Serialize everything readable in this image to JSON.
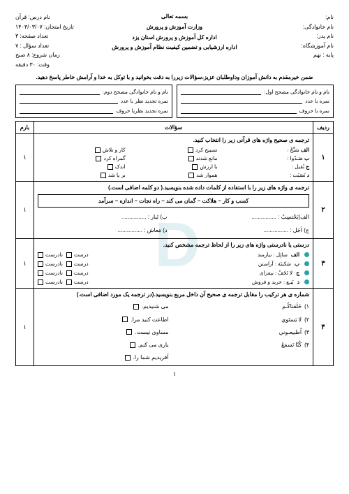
{
  "header": {
    "bismillah": "بسمه تعالی",
    "ministry": "وزارت آموزش و پرورش",
    "office": "اداره کل آموزش و پرورش استان یزد",
    "dept": "اداره ارزشیابی و تضمین کیفیت نظام آموزش و پرورش",
    "right_labels": {
      "l1": "نام:",
      "l2": "نام خانوادگی:",
      "l3": "نام پدر:",
      "l4": "نام آموزشگاه:",
      "l5": "پایه : نهم"
    },
    "left_labels": {
      "l1": "نام درس: قرآن",
      "l2": "تاریخ امتحان: ۱۴۰۳/۰۳/۰۷",
      "l3": "تعداد صفحه: ۳",
      "l4": "تعداد سؤال : ۷",
      "l5": "زمان شروع: ۸ صبح",
      "l6": "وقت: ۳۰ دقیقه"
    }
  },
  "intro": "ضمن خیرمقدم به دانش آموزان وداوطلبان عزیز،سؤالات زیررا به دقت بخوانید و با توکل به خدا و آرامش خاطر پاسخ دهید.",
  "graders": {
    "g1": {
      "title": "نام و نام خانوادگی مصحح اول:",
      "num": "نمره با عدد",
      "word": "نمره با حروف"
    },
    "g2": {
      "title": "نام و نام خانوادگی مصحح دوم:",
      "num": "نمره تجدید نظر با عدد",
      "word": "نمره تجدید نظربا حروف"
    }
  },
  "table": {
    "h_row": "ردیف",
    "h_q": "سؤالات",
    "h_score": "بارم"
  },
  "q1": {
    "num": "۱",
    "score": "۱",
    "title": "ترجمه ی صحیح واژه های قرآنی زیر را انتخاب کنید.",
    "rows": [
      {
        "p": "الف",
        "w": "سَبِّحْ :",
        "o1": "تسبیح کرد",
        "o2": "کار و تلاش"
      },
      {
        "p": "ب",
        "w": "صَـدّوا :",
        "o1": "مانع شدند",
        "o2": "گمراه کرد"
      },
      {
        "p": "ج",
        "w": "ثَقيل :",
        "o1": "با ارزش",
        "o2": "اندک"
      },
      {
        "p": "د",
        "w": "نَصَبَت :",
        "o1": "هموار شد",
        "o2": "بر پا شد"
      }
    ]
  },
  "q2": {
    "num": "۲",
    "score": "۱",
    "title": "ترجمه ی واژه های زیر را با استفاده از کلمات داده شده بنویسید.( دو کلمه اضافی است.)",
    "box": "کسب و کار – هلاکت – گمان می کند – راه نجات – اندازه – سرآمد",
    "items": {
      "a": "الف)يَحْتسِبُ :",
      "b": "ب) تَبار :",
      "c": "ج) اَجَل :",
      "d": "د) مَعاش :"
    }
  },
  "q3": {
    "num": "۳",
    "score": "۱",
    "title": "درستی یا نادرستی واژه های زیر را  از لحاظ ترجمه مشخص کنید.",
    "items": [
      {
        "p": "الف",
        "t": "سائِل : نیازمند"
      },
      {
        "p": "ب",
        "t": "سَکينَة : آراستن"
      },
      {
        "p": "ج",
        "t": "لا تَخَفْ : بیفزای"
      },
      {
        "p": "د",
        "t": "بَيـع : خرید و فروش"
      }
    ],
    "true_l": "درست",
    "false_l": "نادرست"
  },
  "q4": {
    "num": "۴",
    "score": "۱",
    "title": "شماره ی  هر ترکیب را مقابل ترجمه ی صحیح آن داخل مربع بنویسید.(در ترجمه یک مورد اضافی است.)",
    "right": [
      "خَلَقناکُـم",
      "لا يَستَوي",
      "اُطبيعـوني",
      "کُنّا نَسمَعُ"
    ],
    "left": [
      "می شنیدیم.",
      "اطاعت کنید مرا.",
      "مساوی نیست.",
      "یاری می کنم.",
      "آفریدیم شما را."
    ]
  },
  "pagenum": "۱",
  "style": {
    "border_color": "#000000",
    "bullet_color": "#2aa3a3",
    "watermark_color": "rgba(120,190,200,0.22)"
  }
}
